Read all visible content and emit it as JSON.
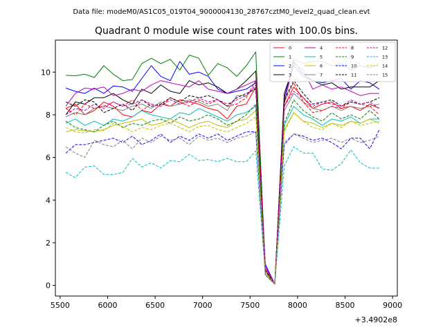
{
  "chart_data": {
    "type": "line",
    "suptitle": "Data file: modeM0/AS1C05_019T04_9000004130_28767cztM0_level2_quad_clean.evt",
    "title": "Quadrant 0 module wise count rates with 100.0s bins.",
    "xlabel": "",
    "ylabel": "",
    "x_offset_label": "+3.4902e8",
    "xlim": [
      5450,
      9050
    ],
    "ylim": [
      -0.5,
      11.5
    ],
    "xticks": [
      5500,
      6000,
      6500,
      7000,
      7500,
      8000,
      8500,
      9000
    ],
    "yticks": [
      0,
      2,
      4,
      6,
      8,
      10
    ],
    "grid": false,
    "legend_position": "top-right",
    "x": [
      5560,
      5660,
      5760,
      5860,
      5960,
      6060,
      6160,
      6260,
      6360,
      6460,
      6560,
      6660,
      6760,
      6860,
      6960,
      7060,
      7160,
      7260,
      7360,
      7460,
      7560,
      7660,
      7760,
      7860,
      7960,
      8060,
      8160,
      8260,
      8360,
      8460,
      8560,
      8660,
      8760,
      8860
    ],
    "series": [
      {
        "name": "0",
        "color": "#ff0000",
        "dash": "solid",
        "values": [
          8.3,
          8.5,
          8.0,
          8.2,
          8.6,
          8.4,
          8.0,
          7.9,
          8.2,
          8.1,
          8.5,
          8.4,
          8.7,
          8.6,
          8.5,
          8.3,
          8.2,
          7.8,
          8.4,
          8.5,
          9.3,
          0.7,
          0.05,
          8.4,
          9.3,
          8.8,
          8.3,
          8.5,
          8.6,
          8.3,
          8.4,
          8.2,
          8.5,
          8.3
        ]
      },
      {
        "name": "1",
        "color": "#008000",
        "dash": "solid",
        "values": [
          9.85,
          9.83,
          9.9,
          9.75,
          10.3,
          9.9,
          9.6,
          9.65,
          10.4,
          10.65,
          10.4,
          10.6,
          10.1,
          10.8,
          10.65,
          9.85,
          10.4,
          10.2,
          9.8,
          10.3,
          10.95,
          0.8,
          0.05,
          8.5,
          10.6,
          10.4,
          10.5,
          10.5,
          10.3,
          10.4,
          10.1,
          10.3,
          10.2,
          10.4
        ]
      },
      {
        "name": "2",
        "color": "#0000ff",
        "dash": "solid",
        "values": [
          9.25,
          9.1,
          9.0,
          9.25,
          9.0,
          9.35,
          9.3,
          9.1,
          9.7,
          10.3,
          9.8,
          9.6,
          10.5,
          9.9,
          10.0,
          9.8,
          9.2,
          9.0,
          9.1,
          9.2,
          9.5,
          1.0,
          0.05,
          8.8,
          10.5,
          9.9,
          9.6,
          9.5,
          9.6,
          9.7,
          9.2,
          9.6,
          9.5,
          9.2
        ]
      },
      {
        "name": "3",
        "color": "#000000",
        "dash": "solid",
        "values": [
          8.0,
          8.6,
          8.5,
          8.8,
          8.8,
          9.0,
          8.7,
          8.5,
          9.2,
          9.0,
          9.4,
          9.1,
          9.0,
          9.6,
          9.4,
          9.5,
          9.3,
          9.0,
          9.2,
          9.6,
          10.05,
          0.7,
          0.05,
          9.0,
          10.3,
          9.8,
          9.6,
          9.4,
          9.5,
          9.2,
          9.3,
          9.3,
          9.3,
          9.6
        ]
      },
      {
        "name": "4",
        "color": "#bf00bf",
        "dash": "solid",
        "values": [
          8.4,
          9.0,
          9.25,
          9.2,
          9.3,
          8.9,
          9.0,
          9.2,
          9.1,
          9.4,
          9.6,
          9.5,
          9.4,
          9.3,
          9.6,
          9.2,
          9.1,
          9.0,
          9.2,
          9.4,
          9.6,
          0.9,
          0.05,
          8.6,
          10.4,
          10.1,
          9.2,
          9.4,
          9.2,
          9.3,
          9.1,
          8.9,
          9.0,
          9.0
        ]
      },
      {
        "name": "5",
        "color": "#00bfbf",
        "dash": "solid",
        "values": [
          7.6,
          7.8,
          7.5,
          7.7,
          7.5,
          7.8,
          7.7,
          7.9,
          8.2,
          8.0,
          7.9,
          7.8,
          8.1,
          8.0,
          8.3,
          8.1,
          7.9,
          7.7,
          8.0,
          8.1,
          8.4,
          0.6,
          0.05,
          7.5,
          8.4,
          8.0,
          7.8,
          7.5,
          7.8,
          7.7,
          7.9,
          7.6,
          7.8,
          7.8
        ]
      },
      {
        "name": "6",
        "color": "#bfbf00",
        "dash": "solid",
        "values": [
          7.2,
          7.3,
          7.25,
          7.2,
          7.3,
          7.5,
          7.6,
          7.7,
          7.8,
          7.5,
          7.6,
          7.8,
          7.6,
          7.4,
          7.6,
          7.7,
          7.5,
          7.4,
          7.7,
          7.8,
          8.2,
          0.6,
          0.05,
          7.3,
          8.1,
          7.7,
          7.6,
          7.4,
          7.6,
          7.5,
          7.7,
          7.6,
          7.8,
          7.6
        ]
      },
      {
        "name": "7",
        "color": "#808080",
        "dash": "solid",
        "values": [
          7.9,
          8.1,
          8.0,
          8.3,
          8.4,
          8.3,
          8.2,
          8.4,
          8.5,
          8.3,
          8.6,
          8.4,
          8.5,
          8.7,
          8.6,
          8.4,
          8.5,
          8.2,
          8.9,
          8.9,
          9.3,
          0.7,
          0.05,
          8.2,
          9.0,
          8.6,
          8.3,
          8.2,
          8.4,
          8.2,
          8.4,
          8.3,
          8.4,
          8.5
        ]
      },
      {
        "name": "8",
        "color": "#ff0000",
        "dash": "dashed",
        "values": [
          8.3,
          8.0,
          8.5,
          8.3,
          8.4,
          8.6,
          8.4,
          8.7,
          8.2,
          8.5,
          8.4,
          8.8,
          8.6,
          8.4,
          8.7,
          8.5,
          8.7,
          8.4,
          8.5,
          8.8,
          9.6,
          0.8,
          0.05,
          8.6,
          9.5,
          8.6,
          8.1,
          8.2,
          8.4,
          8.3,
          8.6,
          8.5,
          8.4,
          8.0
        ]
      },
      {
        "name": "9",
        "color": "#008000",
        "dash": "dashed",
        "values": [
          7.7,
          7.4,
          7.3,
          7.2,
          7.5,
          7.7,
          7.4,
          7.6,
          7.5,
          7.7,
          7.8,
          7.6,
          7.9,
          7.7,
          7.8,
          8.0,
          7.8,
          7.5,
          7.7,
          8.0,
          8.5,
          0.6,
          0.05,
          7.6,
          8.7,
          8.2,
          7.9,
          7.7,
          8.1,
          7.8,
          8.0,
          7.8,
          8.2,
          7.8
        ]
      },
      {
        "name": "10",
        "color": "#0000ff",
        "dash": "dashed",
        "values": [
          6.2,
          6.6,
          6.6,
          6.7,
          6.8,
          6.9,
          6.7,
          7.0,
          6.6,
          6.8,
          7.1,
          6.7,
          7.0,
          6.8,
          7.1,
          6.9,
          7.1,
          6.8,
          7.0,
          7.2,
          7.2,
          0.5,
          0.05,
          6.6,
          7.1,
          7.0,
          6.8,
          6.9,
          6.7,
          6.4,
          6.9,
          6.9,
          6.4,
          7.3
        ]
      },
      {
        "name": "11",
        "color": "#000000",
        "dash": "dashed",
        "values": [
          8.6,
          8.4,
          8.7,
          8.6,
          8.1,
          8.3,
          8.5,
          8.2,
          8.7,
          8.4,
          8.5,
          8.8,
          8.6,
          8.9,
          8.8,
          8.9,
          8.7,
          8.4,
          8.8,
          9.0,
          9.2,
          0.7,
          0.05,
          8.7,
          9.6,
          9.0,
          8.5,
          8.6,
          8.7,
          8.4,
          8.6,
          8.5,
          8.6,
          8.8
        ]
      },
      {
        "name": "12",
        "color": "#bf00bf",
        "dash": "dashed",
        "values": [
          8.0,
          8.3,
          8.2,
          8.5,
          8.3,
          8.6,
          8.4,
          8.5,
          8.7,
          8.5,
          8.4,
          8.7,
          8.5,
          8.6,
          8.8,
          8.6,
          8.7,
          8.5,
          8.7,
          8.9,
          9.4,
          0.8,
          0.05,
          8.4,
          9.1,
          8.8,
          8.4,
          8.6,
          8.5,
          8.4,
          8.7,
          8.5,
          8.6,
          8.3
        ]
      },
      {
        "name": "13",
        "color": "#00bfbf",
        "dash": "dashed",
        "values": [
          5.3,
          5.05,
          5.55,
          5.6,
          5.2,
          5.2,
          5.3,
          5.95,
          5.55,
          5.75,
          5.5,
          5.85,
          5.8,
          6.15,
          5.85,
          5.9,
          5.8,
          5.95,
          5.8,
          5.8,
          6.3,
          0.5,
          0.05,
          5.6,
          6.5,
          6.2,
          6.2,
          5.45,
          5.4,
          5.7,
          6.35,
          5.75,
          5.5,
          5.5
        ]
      },
      {
        "name": "14",
        "color": "#bfbf00",
        "dash": "dashed",
        "values": [
          7.4,
          7.2,
          7.15,
          7.3,
          7.25,
          7.6,
          7.45,
          7.2,
          7.4,
          7.3,
          7.5,
          7.6,
          7.4,
          7.2,
          7.45,
          7.5,
          7.3,
          7.2,
          7.4,
          7.6,
          7.9,
          0.6,
          0.05,
          7.2,
          8.1,
          7.7,
          7.4,
          7.3,
          7.6,
          7.4,
          7.7,
          7.5,
          7.6,
          7.7
        ]
      },
      {
        "name": "15",
        "color": "#808080",
        "dash": "dashed",
        "values": [
          6.5,
          6.2,
          6.0,
          6.8,
          6.6,
          6.5,
          6.8,
          6.4,
          6.9,
          6.7,
          7.0,
          6.8,
          6.9,
          6.6,
          7.0,
          6.8,
          6.9,
          6.7,
          6.9,
          7.0,
          7.2,
          0.5,
          0.05,
          6.7,
          7.1,
          6.9,
          6.7,
          6.8,
          6.9,
          6.7,
          6.9,
          6.7,
          6.8,
          7.0
        ]
      }
    ]
  }
}
